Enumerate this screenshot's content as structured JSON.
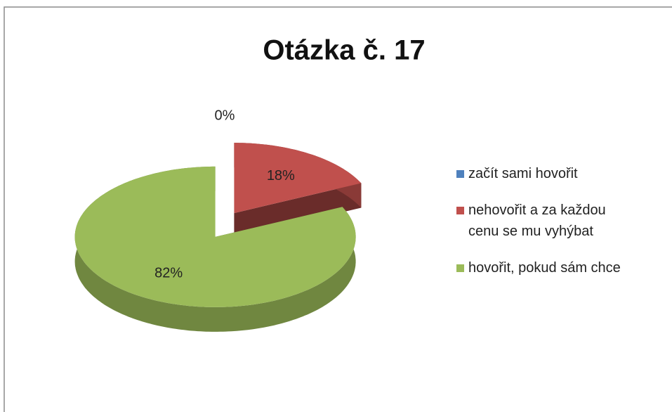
{
  "chart_data": {
    "type": "pie",
    "title": "Otázka č. 17",
    "categories": [
      "začít sami hovořit",
      "nehovořit a za každou cenu se mu vyhýbat",
      "hovořit, pokud sám chce"
    ],
    "values": [
      0,
      18,
      82
    ],
    "value_labels": [
      "0%",
      "18%",
      "82%"
    ],
    "colors": [
      "#4f81bd",
      "#c0504d",
      "#9bbb59"
    ],
    "legend": "right"
  }
}
